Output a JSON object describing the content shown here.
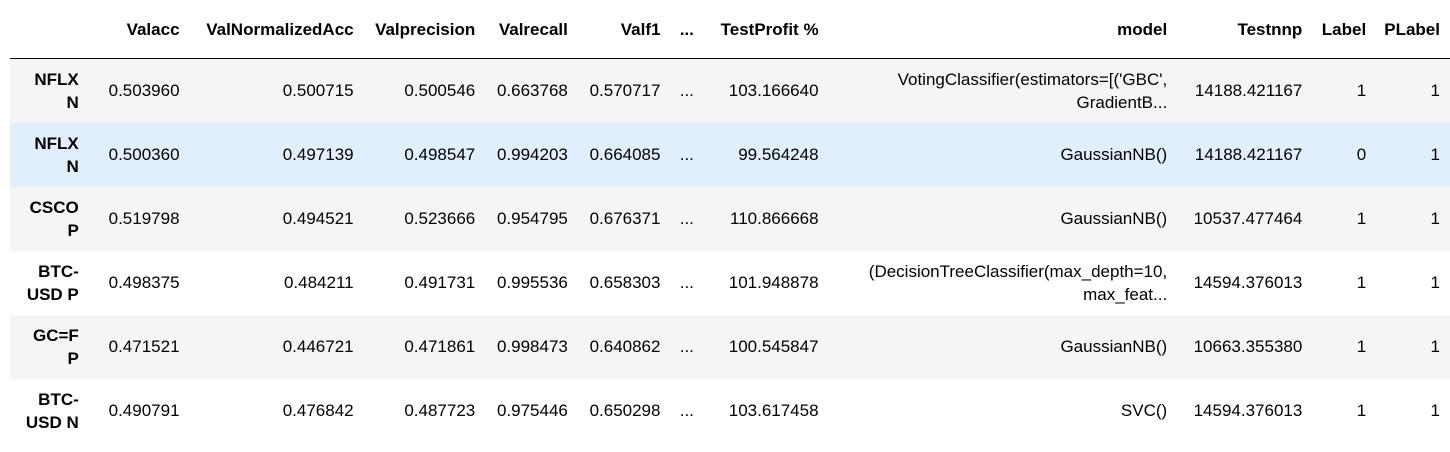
{
  "table": {
    "columns": [
      "",
      "Valacc",
      "ValNormalizedAcc",
      "Valprecision",
      "Valrecall",
      "Valf1",
      "...",
      "TestProfit %",
      "model",
      "Testnnp",
      "Label",
      "PLabel"
    ],
    "rows": [
      {
        "index": "NFLX N",
        "cells": [
          "0.503960",
          "0.500715",
          "0.500546",
          "0.663768",
          "0.570717",
          "...",
          "103.166640",
          "VotingClassifier(estimators=[('GBC', GradientB...",
          "14188.421167",
          "1",
          "1"
        ]
      },
      {
        "index": "NFLX N",
        "cells": [
          "0.500360",
          "0.497139",
          "0.498547",
          "0.994203",
          "0.664085",
          "...",
          "99.564248",
          "GaussianNB()",
          "14188.421167",
          "0",
          "1"
        ]
      },
      {
        "index": "CSCO P",
        "cells": [
          "0.519798",
          "0.494521",
          "0.523666",
          "0.954795",
          "0.676371",
          "...",
          "110.866668",
          "GaussianNB()",
          "10537.477464",
          "1",
          "1"
        ]
      },
      {
        "index": "BTC-USD P",
        "cells": [
          "0.498375",
          "0.484211",
          "0.491731",
          "0.995536",
          "0.658303",
          "...",
          "101.948878",
          "(DecisionTreeClassifier(max_depth=10, max_feat...",
          "14594.376013",
          "1",
          "1"
        ]
      },
      {
        "index": "GC=F P",
        "cells": [
          "0.471521",
          "0.446721",
          "0.471861",
          "0.998473",
          "0.640862",
          "...",
          "100.545847",
          "GaussianNB()",
          "10663.355380",
          "1",
          "1"
        ]
      },
      {
        "index": "BTC-USD N",
        "cells": [
          "0.490791",
          "0.476842",
          "0.487723",
          "0.975446",
          "0.650298",
          "...",
          "103.617458",
          "SVC()",
          "14594.376013",
          "1",
          "1"
        ]
      }
    ]
  },
  "colors": {
    "row_stripe": "#f5f5f5",
    "row_hover": "#e1eefc",
    "header_rule": "#000000"
  }
}
